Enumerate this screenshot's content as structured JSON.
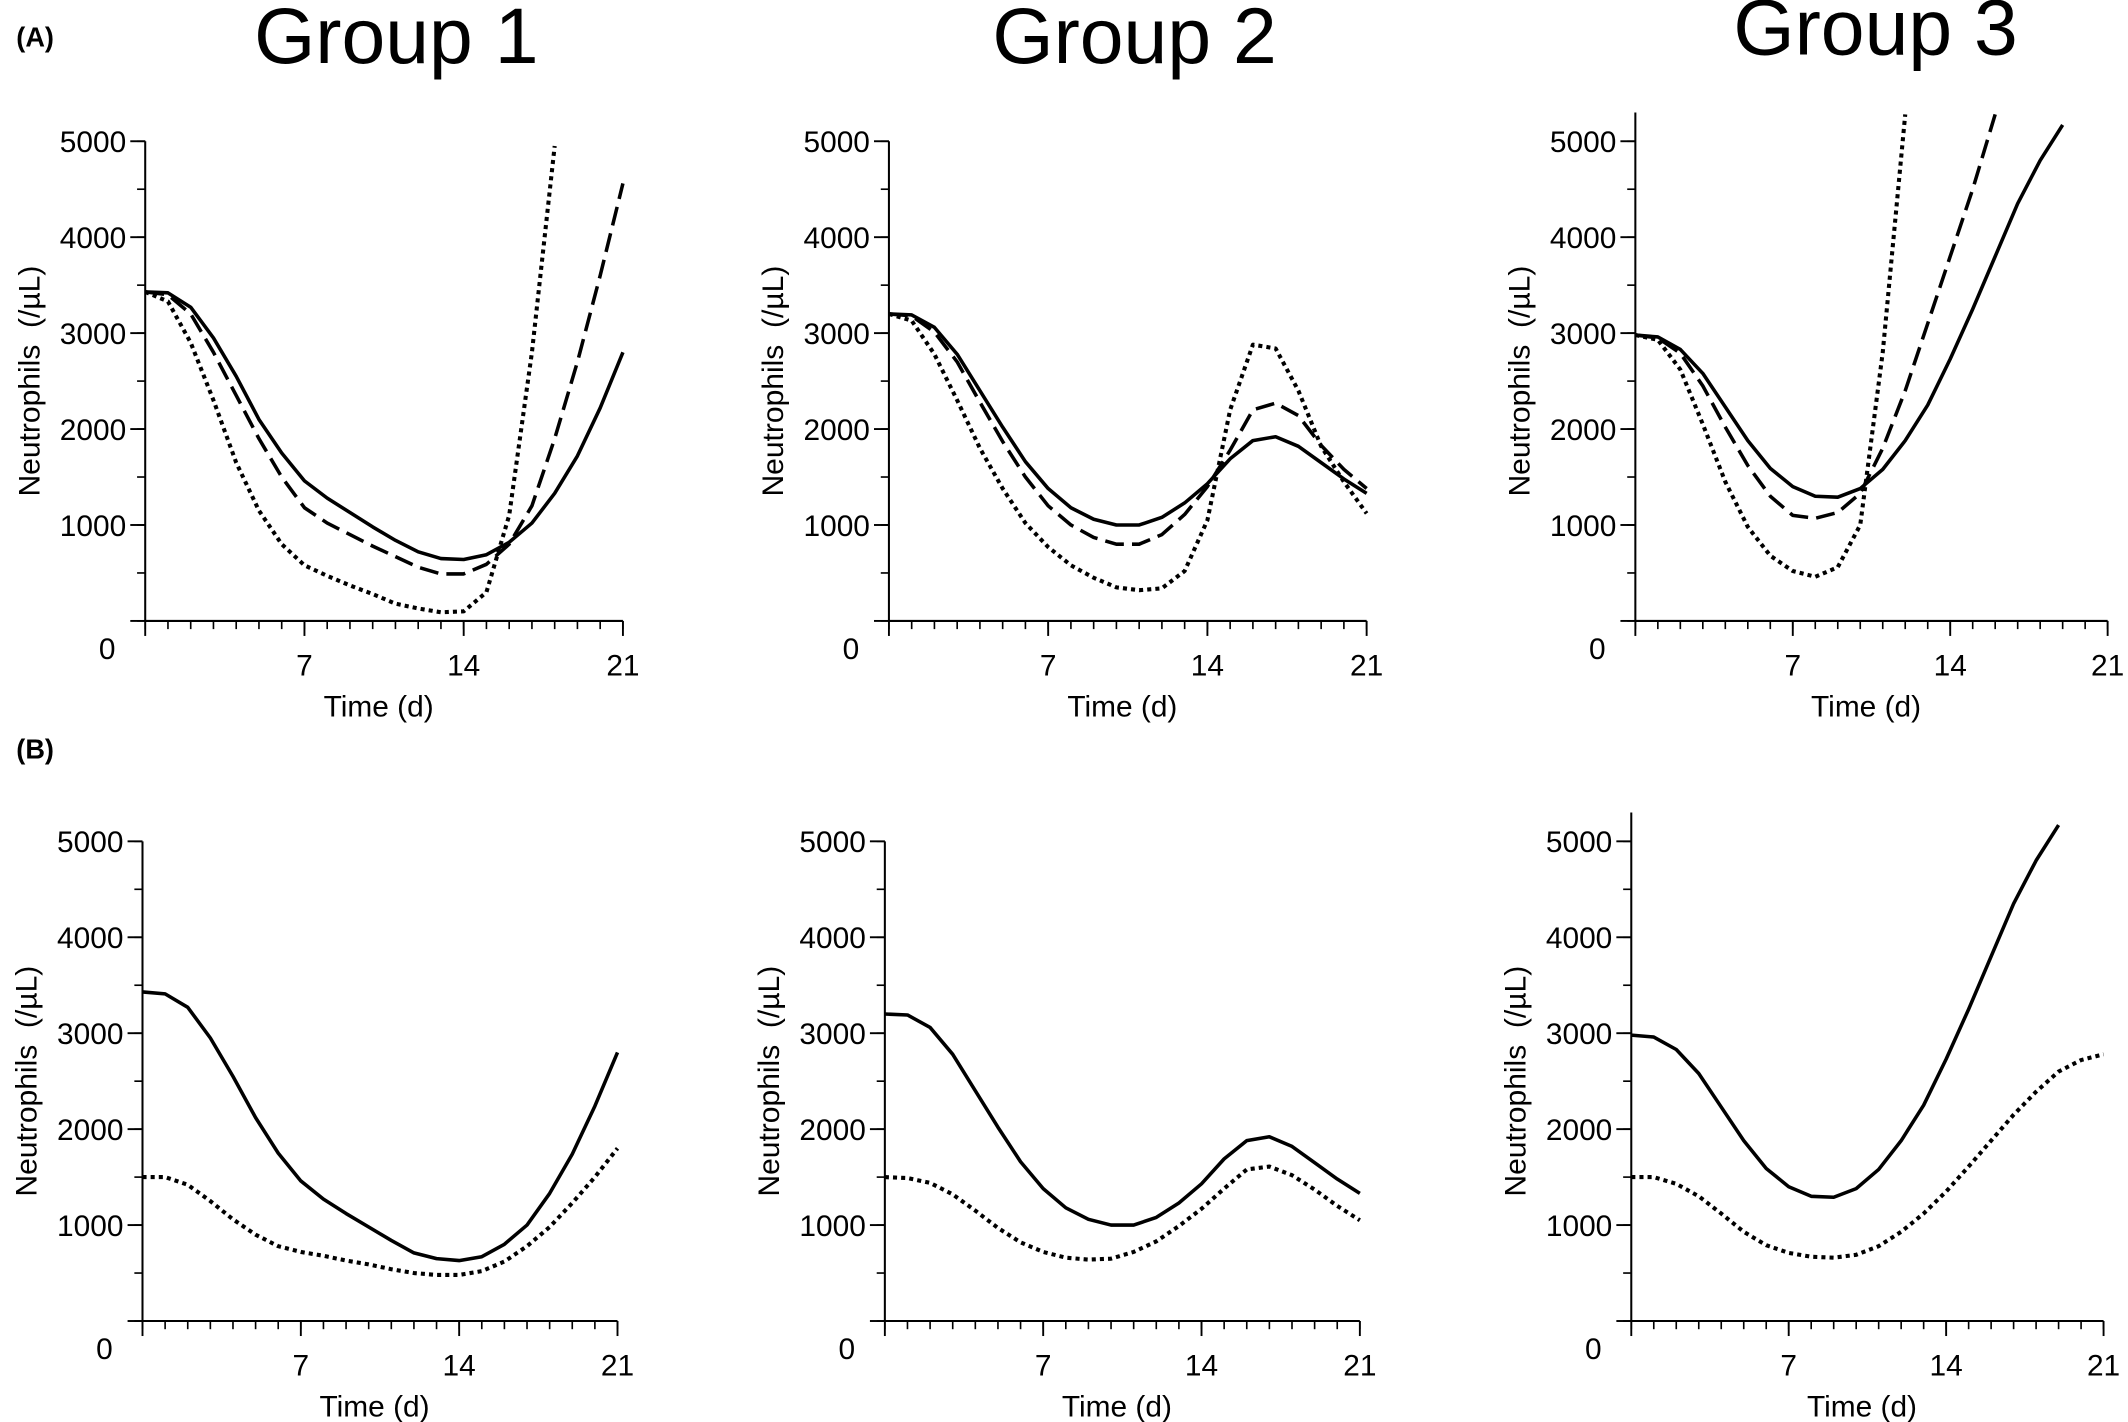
{
  "labels": [
    "(A)",
    "(B)"
  ],
  "chart_data": [
    {
      "type": "line",
      "title": "Group 1",
      "xlabel": "Time (d)",
      "ylabel": "Neutrophils  (/µL)",
      "x": [
        0,
        1,
        2,
        3,
        4,
        5,
        6,
        7,
        8,
        9,
        10,
        11,
        12,
        13,
        14,
        15,
        16,
        17,
        18,
        19,
        20,
        21
      ],
      "xlim": [
        0,
        21
      ],
      "xticks": [
        0,
        7,
        14,
        21
      ],
      "x_minor_step": 1,
      "ylim": [
        0,
        5000
      ],
      "yticks": [
        0,
        1000,
        2000,
        3000,
        4000,
        5000
      ],
      "y_minor_step": 500,
      "series": [
        {
          "color": "#000000",
          "style": "solid",
          "values": [
            3430,
            3420,
            3270,
            2950,
            2550,
            2100,
            1750,
            1460,
            1280,
            1130,
            980,
            840,
            720,
            650,
            640,
            690,
            820,
            1020,
            1330,
            1720,
            2220,
            2800
          ]
        },
        {
          "color": "#000000",
          "style": "dashed",
          "values": [
            3430,
            3400,
            3200,
            2800,
            2350,
            1900,
            1500,
            1180,
            1020,
            900,
            780,
            670,
            560,
            490,
            490,
            590,
            800,
            1200,
            1900,
            2700,
            3600,
            4560
          ]
        },
        {
          "color": "#000000",
          "style": "dotted",
          "values": [
            3430,
            3330,
            2900,
            2300,
            1650,
            1150,
            800,
            580,
            470,
            370,
            280,
            180,
            130,
            90,
            100,
            300,
            1100,
            2800,
            4950,
            null,
            null,
            null
          ]
        }
      ]
    },
    {
      "type": "line",
      "title": "Group 2",
      "xlabel": "Time (d)",
      "ylabel": "Neutrophils  (/µL)",
      "x": [
        0,
        1,
        2,
        3,
        4,
        5,
        6,
        7,
        8,
        9,
        10,
        11,
        12,
        13,
        14,
        15,
        16,
        17,
        18,
        19,
        20,
        21
      ],
      "xlim": [
        0,
        21
      ],
      "xticks": [
        0,
        7,
        14,
        21
      ],
      "x_minor_step": 1,
      "ylim": [
        0,
        5000
      ],
      "yticks": [
        0,
        1000,
        2000,
        3000,
        4000,
        5000
      ],
      "y_minor_step": 500,
      "series": [
        {
          "color": "#000000",
          "style": "solid",
          "values": [
            3200,
            3190,
            3060,
            2780,
            2400,
            2020,
            1660,
            1380,
            1180,
            1060,
            1000,
            1000,
            1080,
            1230,
            1430,
            1690,
            1880,
            1920,
            1820,
            1650,
            1480,
            1330
          ]
        },
        {
          "color": "#000000",
          "style": "dashed",
          "values": [
            3200,
            3180,
            3010,
            2700,
            2280,
            1870,
            1500,
            1200,
            1000,
            870,
            800,
            800,
            900,
            1110,
            1400,
            1780,
            2200,
            2270,
            2140,
            1830,
            1580,
            1380
          ]
        },
        {
          "color": "#000000",
          "style": "dotted",
          "values": [
            3200,
            3130,
            2780,
            2300,
            1800,
            1380,
            1020,
            770,
            580,
            450,
            350,
            320,
            340,
            520,
            1050,
            2200,
            2880,
            2840,
            2400,
            1820,
            1450,
            1120
          ]
        }
      ]
    },
    {
      "type": "line",
      "title": "Group 3",
      "xlabel": "Time (d)",
      "ylabel": "Neutrophils  (/µL)",
      "x": [
        0,
        1,
        2,
        3,
        4,
        5,
        6,
        7,
        8,
        9,
        10,
        11,
        12,
        13,
        14,
        15,
        16,
        17,
        18,
        19,
        20,
        21
      ],
      "xlim": [
        0,
        21
      ],
      "xticks": [
        0,
        7,
        14,
        21
      ],
      "x_minor_step": 1,
      "ylim": [
        0,
        5300
      ],
      "yticks": [
        0,
        1000,
        2000,
        3000,
        4000,
        5000
      ],
      "y_minor_step": 500,
      "series": [
        {
          "color": "#000000",
          "style": "solid",
          "values": [
            2980,
            2960,
            2830,
            2580,
            2230,
            1880,
            1590,
            1400,
            1300,
            1290,
            1380,
            1580,
            1880,
            2250,
            2730,
            3250,
            3800,
            4350,
            4800,
            5170,
            null,
            null
          ]
        },
        {
          "color": "#000000",
          "style": "dashed",
          "values": [
            2980,
            2950,
            2790,
            2450,
            2020,
            1620,
            1300,
            1100,
            1070,
            1130,
            1330,
            1800,
            2400,
            3100,
            3800,
            4500,
            5280,
            null,
            null,
            null,
            null,
            null
          ]
        },
        {
          "color": "#000000",
          "style": "dotted",
          "values": [
            2980,
            2930,
            2620,
            2050,
            1450,
            980,
            680,
            520,
            460,
            560,
            1000,
            2800,
            5280,
            null,
            null,
            null,
            null,
            null,
            null,
            null,
            null,
            null
          ]
        }
      ]
    },
    {
      "type": "line",
      "xlabel": "Time (d)",
      "ylabel": "Neutrophils  (/µL)",
      "x": [
        0,
        1,
        2,
        3,
        4,
        5,
        6,
        7,
        8,
        9,
        10,
        11,
        12,
        13,
        14,
        15,
        16,
        17,
        18,
        19,
        20,
        21
      ],
      "xlim": [
        0,
        21
      ],
      "xticks": [
        0,
        7,
        14,
        21
      ],
      "x_minor_step": 1,
      "ylim": [
        0,
        5000
      ],
      "yticks": [
        0,
        1000,
        2000,
        3000,
        4000,
        5000
      ],
      "y_minor_step": 500,
      "series": [
        {
          "color": "#000000",
          "style": "solid",
          "values": [
            3430,
            3410,
            3270,
            2950,
            2550,
            2120,
            1750,
            1460,
            1270,
            1120,
            980,
            840,
            710,
            650,
            630,
            670,
            800,
            1000,
            1330,
            1740,
            2240,
            2800
          ]
        },
        {
          "color": "#000000",
          "style": "dotted",
          "values": [
            1500,
            1500,
            1420,
            1250,
            1060,
            900,
            780,
            720,
            680,
            630,
            590,
            540,
            500,
            480,
            480,
            520,
            620,
            780,
            980,
            1230,
            1500,
            1800
          ]
        }
      ]
    },
    {
      "type": "line",
      "xlabel": "Time (d)",
      "ylabel": "Neutrophils  (/µL)",
      "x": [
        0,
        1,
        2,
        3,
        4,
        5,
        6,
        7,
        8,
        9,
        10,
        11,
        12,
        13,
        14,
        15,
        16,
        17,
        18,
        19,
        20,
        21
      ],
      "xlim": [
        0,
        21
      ],
      "xticks": [
        0,
        7,
        14,
        21
      ],
      "x_minor_step": 1,
      "ylim": [
        0,
        5000
      ],
      "yticks": [
        0,
        1000,
        2000,
        3000,
        4000,
        5000
      ],
      "y_minor_step": 500,
      "series": [
        {
          "color": "#000000",
          "style": "solid",
          "values": [
            3200,
            3190,
            3060,
            2780,
            2400,
            2020,
            1660,
            1380,
            1180,
            1060,
            1000,
            1000,
            1080,
            1230,
            1430,
            1690,
            1880,
            1920,
            1820,
            1650,
            1480,
            1330
          ]
        },
        {
          "color": "#000000",
          "style": "dotted",
          "values": [
            1500,
            1490,
            1440,
            1320,
            1150,
            970,
            820,
            720,
            660,
            640,
            650,
            720,
            830,
            990,
            1170,
            1380,
            1580,
            1610,
            1520,
            1370,
            1200,
            1050
          ]
        }
      ]
    },
    {
      "type": "line",
      "xlabel": "Time (d)",
      "ylabel": "Neutrophils  (/µL)",
      "x": [
        0,
        1,
        2,
        3,
        4,
        5,
        6,
        7,
        8,
        9,
        10,
        11,
        12,
        13,
        14,
        15,
        16,
        17,
        18,
        19,
        20,
        21
      ],
      "xlim": [
        0,
        21
      ],
      "xticks": [
        0,
        7,
        14,
        21
      ],
      "x_minor_step": 1,
      "ylim": [
        0,
        5300
      ],
      "yticks": [
        0,
        1000,
        2000,
        3000,
        4000,
        5000
      ],
      "y_minor_step": 500,
      "series": [
        {
          "color": "#000000",
          "style": "solid",
          "values": [
            2980,
            2960,
            2830,
            2580,
            2230,
            1880,
            1590,
            1400,
            1300,
            1290,
            1380,
            1580,
            1880,
            2250,
            2730,
            3250,
            3800,
            4350,
            4800,
            5170,
            null,
            null
          ]
        },
        {
          "color": "#000000",
          "style": "dotted",
          "values": [
            1500,
            1500,
            1430,
            1300,
            1120,
            930,
            790,
            710,
            670,
            660,
            690,
            780,
            930,
            1120,
            1350,
            1610,
            1880,
            2150,
            2390,
            2600,
            2720,
            2780
          ]
        }
      ]
    }
  ]
}
